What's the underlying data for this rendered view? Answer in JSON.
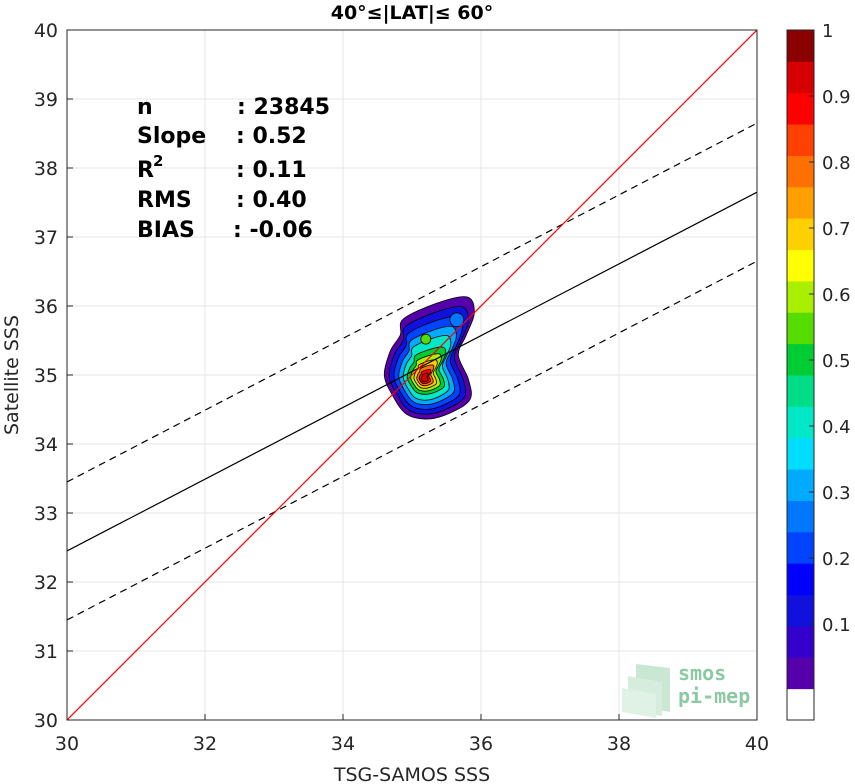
{
  "chart_data": {
    "type": "scatter",
    "title": "40°≤|LAT|≤ 60°",
    "xlabel": "TSG-SAMOS SSS",
    "ylabel": "Satellite SSS",
    "xlim": [
      30,
      40
    ],
    "ylim": [
      30,
      40
    ],
    "xticks": [
      "30",
      "32",
      "34",
      "36",
      "38",
      "40"
    ],
    "yticks": [
      "30",
      "31",
      "32",
      "33",
      "34",
      "35",
      "36",
      "37",
      "38",
      "39",
      "40"
    ],
    "grid": true,
    "stats": [
      {
        "label": "n",
        "value": ": 23845"
      },
      {
        "label": "Slope",
        "value": ": 0.52"
      },
      {
        "label": "R",
        "sup": "2",
        "value": ": 0.11"
      },
      {
        "label": "RMS",
        "value": ": 0.40"
      },
      {
        "label": "BIAS",
        "value": ": -0.06"
      }
    ],
    "lines": {
      "identity": {
        "slope": 1,
        "intercept": 0,
        "color": "#ff0000"
      },
      "regression": {
        "slope": 0.52,
        "intercept": 16.85,
        "color": "#000000"
      },
      "regression_offset": 1.0
    },
    "density_peak": {
      "x": 35.15,
      "y": 35.0
    },
    "colorbar": {
      "ticks": [
        "0.1",
        "0.2",
        "0.3",
        "0.4",
        "0.5",
        "0.6",
        "0.7",
        "0.8",
        "0.9",
        "1"
      ],
      "colors": [
        "#ffffff",
        "#5500aa",
        "#3300cc",
        "#1111dd",
        "#0000ff",
        "#0044ff",
        "#0077ff",
        "#00aaff",
        "#00ddff",
        "#00e8c8",
        "#00dd88",
        "#00cc33",
        "#55dd00",
        "#aaee00",
        "#ffff00",
        "#ffd000",
        "#ffa000",
        "#ff7000",
        "#ff4000",
        "#ff0000",
        "#d60000",
        "#8b0000"
      ]
    }
  },
  "logo": {
    "line1": "smos",
    "line2": "pi-mep"
  }
}
